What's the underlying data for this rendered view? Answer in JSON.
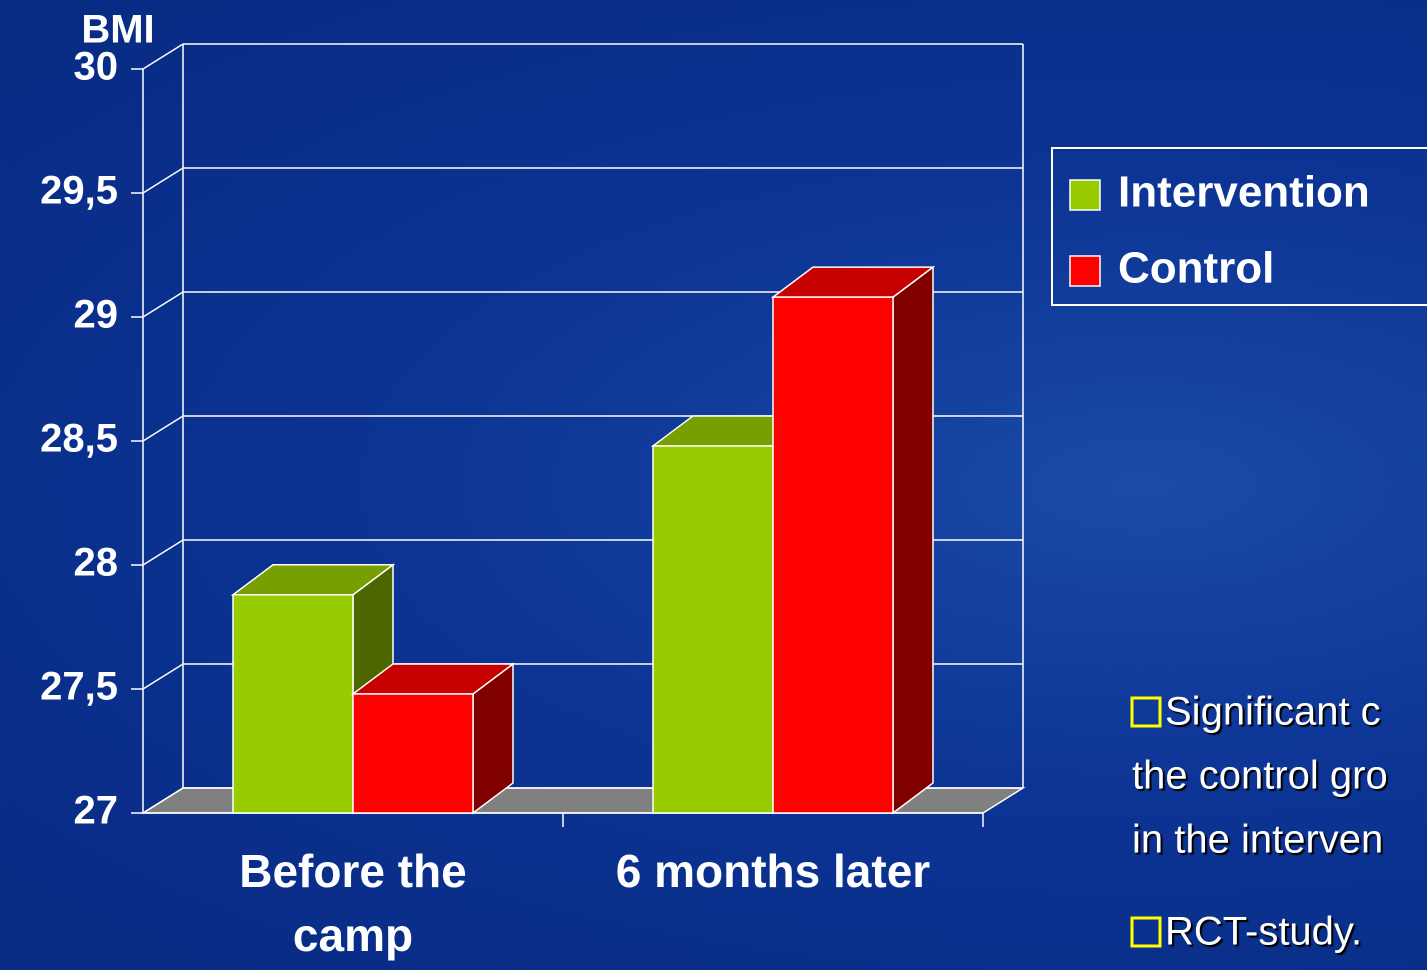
{
  "chart_data": {
    "type": "bar3d",
    "y_label": "BMI",
    "categories": [
      "Before the camp",
      "6 months later"
    ],
    "series": [
      {
        "name": "Intervention",
        "color": "#99cc00",
        "values": [
          27.88,
          28.48
        ]
      },
      {
        "name": "Control",
        "color": "#ff0000",
        "values": [
          27.48,
          29.08
        ]
      }
    ],
    "ylim": [
      27,
      30
    ],
    "yticks": [
      27,
      {
        "value": 27.5,
        "label": "27,5"
      },
      28,
      {
        "value": 28.5,
        "label": "28,5"
      },
      29,
      {
        "value": 29.5,
        "label": "29,5"
      },
      30
    ],
    "grid": true
  },
  "notes": [
    "Significant c",
    "the control gro",
    "in the interven",
    "RCT-study."
  ]
}
